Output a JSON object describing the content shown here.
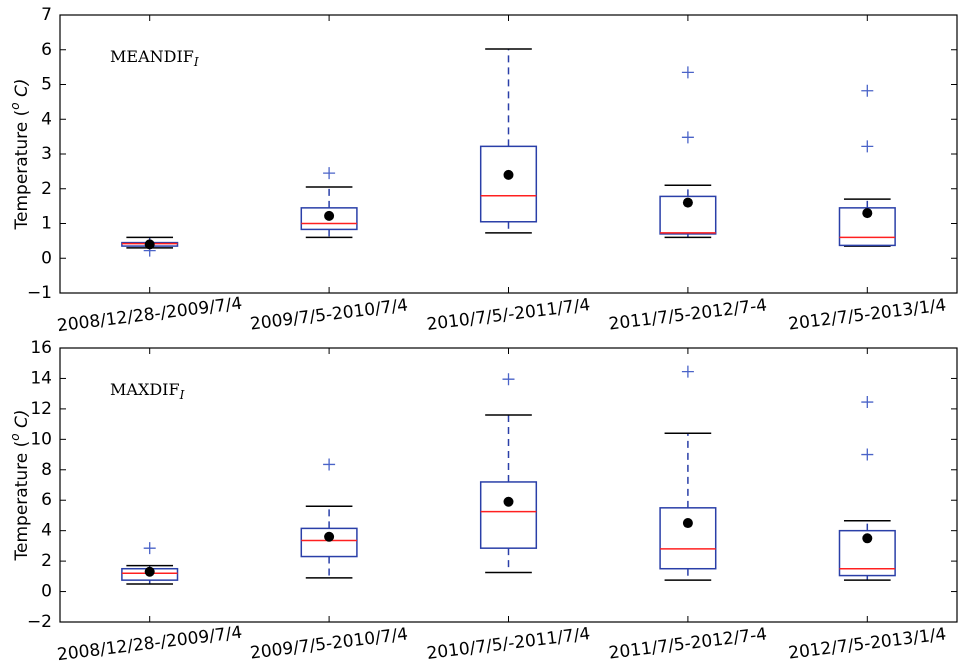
{
  "chart_data": [
    {
      "type": "box",
      "annotation": "MEANDIF",
      "annotation_sub": "I",
      "ylabel": [
        "Temperature (",
        "o",
        " C)"
      ],
      "categories": [
        "2008/12/28-/2009/7/4",
        "2009/7/5-2010/7/4",
        "2010/7/5/-2011/7/4",
        "2011/7/5-2012/7-4",
        "2012/7/5-2013/1/4"
      ],
      "boxes": [
        {
          "low": 0.3,
          "q1": 0.35,
          "median": 0.42,
          "q3": 0.45,
          "high": 0.6,
          "mean": 0.4,
          "outliers": [
            0.22
          ]
        },
        {
          "low": 0.6,
          "q1": 0.83,
          "median": 1.0,
          "q3": 1.45,
          "high": 2.05,
          "mean": 1.22,
          "outliers": [
            2.45
          ]
        },
        {
          "low": 0.73,
          "q1": 1.05,
          "median": 1.8,
          "q3": 3.22,
          "high": 6.02,
          "mean": 2.4,
          "outliers": []
        },
        {
          "low": 0.6,
          "q1": 0.7,
          "median": 0.73,
          "q3": 1.78,
          "high": 2.1,
          "mean": 1.6,
          "outliers": [
            3.48,
            5.35
          ]
        },
        {
          "low": 0.35,
          "q1": 0.37,
          "median": 0.6,
          "q3": 1.45,
          "high": 1.7,
          "mean": 1.3,
          "outliers": [
            3.22,
            4.82
          ]
        }
      ],
      "box_color": "#2a3fa8",
      "median_color": "#ff2020",
      "mean_color": "#000000",
      "outlier_color": "#4a63c8",
      "ylim": [
        -1,
        7
      ],
      "yticks": [
        {
          "value": -1,
          "label": "−1"
        },
        0,
        1,
        2,
        3,
        4,
        5,
        6,
        7
      ]
    },
    {
      "type": "box",
      "annotation": "MAXDIF",
      "annotation_sub": "I",
      "ylabel": [
        "Temperature (",
        "o",
        " C)"
      ],
      "categories": [
        "2008/12/28-/2009/7/4",
        "2009/7/5-2010/7/4",
        "2010/7/5/-2011/7/4",
        "2011/7/5-2012/7-4",
        "2012/7/5-2013/1/4"
      ],
      "boxes": [
        {
          "low": 0.5,
          "q1": 0.75,
          "median": 1.2,
          "q3": 1.5,
          "high": 1.7,
          "mean": 1.3,
          "outliers": [
            2.85
          ]
        },
        {
          "low": 0.9,
          "q1": 2.3,
          "median": 3.35,
          "q3": 4.15,
          "high": 5.6,
          "mean": 3.6,
          "outliers": [
            8.35
          ]
        },
        {
          "low": 1.25,
          "q1": 2.85,
          "median": 5.25,
          "q3": 7.2,
          "high": 11.6,
          "mean": 5.9,
          "outliers": [
            13.95
          ]
        },
        {
          "low": 0.75,
          "q1": 1.5,
          "median": 2.8,
          "q3": 5.5,
          "high": 10.4,
          "mean": 4.5,
          "outliers": [
            14.45
          ]
        },
        {
          "low": 0.75,
          "q1": 1.05,
          "median": 1.5,
          "q3": 4.0,
          "high": 4.65,
          "mean": 3.5,
          "outliers": [
            9.0,
            12.45
          ]
        }
      ],
      "box_color": "#2a3fa8",
      "median_color": "#ff2020",
      "mean_color": "#000000",
      "outlier_color": "#4a63c8",
      "ylim": [
        -2,
        16
      ],
      "yticks": [
        {
          "value": -2,
          "label": "−2"
        },
        0,
        2,
        4,
        6,
        8,
        10,
        12,
        14,
        16
      ]
    }
  ]
}
